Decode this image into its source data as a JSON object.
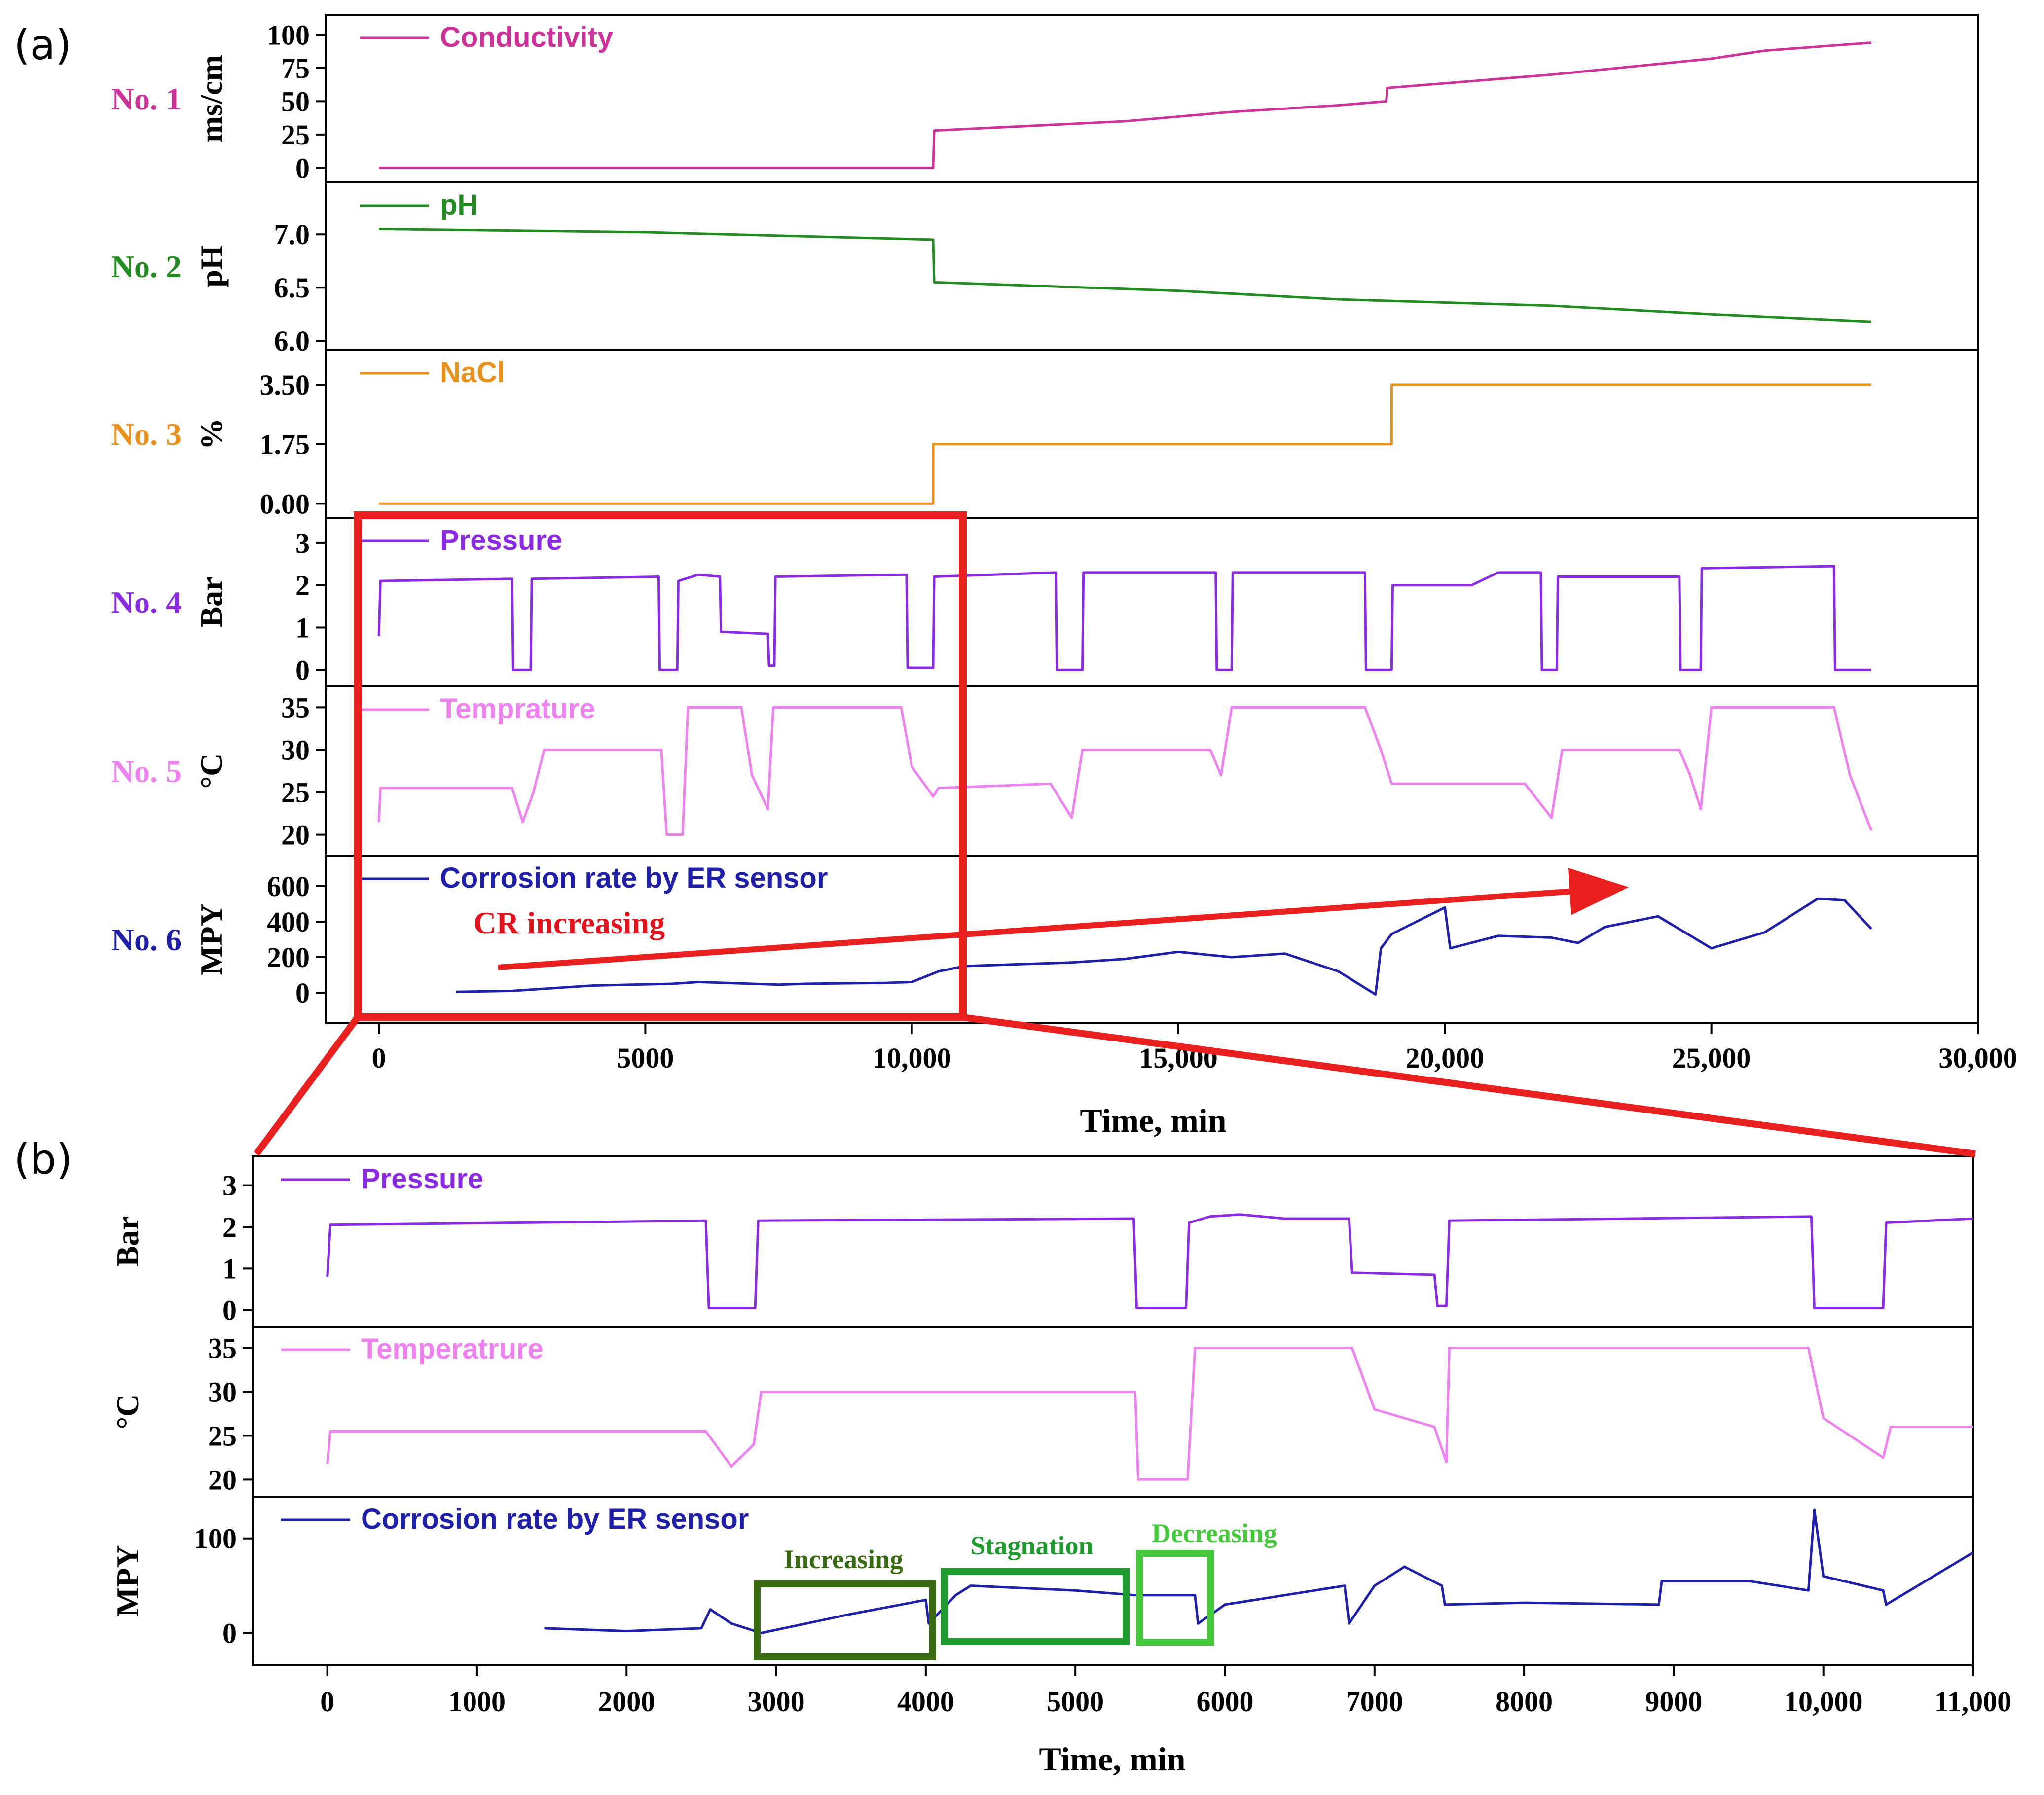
{
  "figure": {
    "panel_a_label": "(a)",
    "panel_b_label": "(b)",
    "xlabel_a": "Time, min",
    "xlabel_b": "Time, min",
    "annotation_cr": "CR increasing",
    "annotation_increasing": "Increasing",
    "annotation_stagnation": "Stagnation",
    "annotation_decreasing": "Decreasing"
  },
  "chart_data": [
    {
      "type": "line",
      "panel": "a",
      "x_ticks": [
        "0",
        "5000",
        "10,000",
        "15,000",
        "20,000",
        "25,000",
        "30,000"
      ],
      "xlim": [
        -1000,
        30000
      ],
      "xlabel": "Time, min",
      "subplots": [
        {
          "row_label": "No. 1",
          "ylabel": "ms/cm",
          "legend": "Conductivity",
          "color": "#cc3399",
          "ylim": [
            -8,
            112
          ],
          "yticks": [
            0,
            25,
            50,
            75,
            100
          ],
          "yticklabels": [
            "0",
            "25",
            "50",
            "75",
            "100"
          ],
          "x": [
            0,
            10400,
            10420,
            14000,
            16000,
            18000,
            18900,
            18920,
            22000,
            25000,
            26000,
            28000
          ],
          "y": [
            0,
            0,
            28,
            35,
            42,
            47,
            50,
            60,
            70,
            82,
            88,
            94
          ]
        },
        {
          "row_label": "No. 2",
          "ylabel": "pH",
          "legend": "pH",
          "color": "#228b22",
          "ylim": [
            5.95,
            7.45
          ],
          "yticks": [
            6.0,
            6.5,
            7.0
          ],
          "yticklabels": [
            "6.0",
            "6.5",
            "7.0"
          ],
          "x": [
            0,
            5000,
            10400,
            10420,
            15000,
            18000,
            22000,
            25000,
            28000
          ],
          "y": [
            7.05,
            7.02,
            6.95,
            6.55,
            6.47,
            6.39,
            6.33,
            6.25,
            6.18
          ]
        },
        {
          "row_label": "No. 3",
          "ylabel": "%",
          "legend": "NaCl",
          "color": "#e8911e",
          "ylim": [
            -0.3,
            4.4
          ],
          "yticks": [
            0,
            1.75,
            3.5
          ],
          "yticklabels": [
            "0.00",
            "1.75",
            "3.50"
          ],
          "x": [
            0,
            10400,
            10401,
            19000,
            19001,
            28000
          ],
          "y": [
            0,
            0,
            1.75,
            1.75,
            3.5,
            3.5
          ]
        },
        {
          "row_label": "No. 4",
          "ylabel": "Bar",
          "legend": "Pressure",
          "color": "#8a2be2",
          "ylim": [
            -0.3,
            3.5
          ],
          "yticks": [
            0,
            1,
            2,
            3
          ],
          "yticklabels": [
            "0",
            "1",
            "2",
            "3"
          ],
          "x": [
            0,
            30,
            2500,
            2520,
            2850,
            2870,
            5250,
            5270,
            5600,
            5620,
            6000,
            6400,
            6420,
            7300,
            7320,
            7420,
            7440,
            9900,
            9920,
            10400,
            10420,
            12700,
            12720,
            13200,
            13220,
            15700,
            15720,
            16000,
            16020,
            18500,
            18520,
            19000,
            19020,
            20500,
            21000,
            21800,
            21820,
            22100,
            22120,
            24400,
            24420,
            24800,
            24820,
            27300,
            27320,
            28000
          ],
          "y": [
            0.8,
            2.1,
            2.15,
            0,
            0,
            2.15,
            2.2,
            0,
            0,
            2.1,
            2.25,
            2.2,
            0.9,
            0.85,
            0.1,
            0.1,
            2.2,
            2.25,
            0.05,
            0.05,
            2.2,
            2.3,
            0,
            0,
            2.3,
            2.3,
            0,
            0,
            2.3,
            2.3,
            0,
            0,
            2.0,
            2.0,
            2.3,
            2.3,
            0,
            0,
            2.2,
            2.2,
            0,
            0,
            2.4,
            2.45,
            0,
            0
          ]
        },
        {
          "row_label": "No. 5",
          "ylabel": "°C",
          "legend": "Temprature",
          "color": "#ee82ee",
          "ylim": [
            18,
            37
          ],
          "yticks": [
            20,
            25,
            30,
            35
          ],
          "yticklabels": [
            "20",
            "25",
            "30",
            "35"
          ],
          "x": [
            0,
            30,
            2500,
            2700,
            2900,
            3100,
            5300,
            5400,
            5700,
            5800,
            6800,
            7000,
            7300,
            7400,
            7600,
            9800,
            10000,
            10400,
            10500,
            12600,
            13000,
            13200,
            13400,
            15600,
            15800,
            16000,
            16100,
            18500,
            18800,
            19000,
            21500,
            22000,
            22200,
            24400,
            24600,
            24800,
            25000,
            25200,
            27300,
            27600,
            28000
          ],
          "y": [
            21.5,
            25.5,
            25.5,
            21.5,
            25,
            30,
            30,
            20,
            20,
            35,
            35,
            27,
            23,
            35,
            35,
            35,
            28,
            24.5,
            25.5,
            26,
            22,
            30,
            30,
            30,
            27,
            35,
            35,
            35,
            30,
            26,
            26,
            22,
            30,
            30,
            27,
            23,
            35,
            35,
            35,
            27,
            20.5
          ]
        },
        {
          "row_label": "No. 6",
          "ylabel": "MPY",
          "legend": "Corrosion rate by ER sensor",
          "color": "#1f1fa8",
          "ylim": [
            -150,
            750
          ],
          "yticks": [
            0,
            200,
            400,
            600
          ],
          "yticklabels": [
            "0",
            "200",
            "400",
            "600"
          ],
          "x": [
            1450,
            2500,
            3000,
            4000,
            5500,
            6000,
            7500,
            8000,
            9500,
            10000,
            10500,
            11000,
            12000,
            13000,
            14000,
            15000,
            16000,
            17000,
            18000,
            18700,
            18800,
            19000,
            20000,
            20100,
            21000,
            22000,
            22500,
            23000,
            24000,
            25000,
            26000,
            27000,
            27500,
            28000
          ],
          "y": [
            5,
            10,
            20,
            40,
            50,
            60,
            45,
            50,
            55,
            60,
            120,
            150,
            160,
            170,
            190,
            230,
            200,
            220,
            120,
            -10,
            250,
            330,
            480,
            250,
            320,
            310,
            280,
            370,
            430,
            250,
            340,
            530,
            520,
            360
          ]
        }
      ]
    },
    {
      "type": "line",
      "panel": "b",
      "x_ticks": [
        "0",
        "1000",
        "2000",
        "3000",
        "4000",
        "5000",
        "6000",
        "7000",
        "8000",
        "9000",
        "10,000",
        "11,000"
      ],
      "xlim": [
        -500,
        11000
      ],
      "xlabel": "Time, min",
      "subplots": [
        {
          "ylabel": "Bar",
          "legend": "Pressure",
          "color": "#8a2be2",
          "ylim": [
            -0.3,
            3.6
          ],
          "yticks": [
            0,
            1,
            2,
            3
          ],
          "yticklabels": [
            "0",
            "1",
            "2",
            "3"
          ],
          "x": [
            0,
            20,
            2530,
            2550,
            2860,
            2880,
            5390,
            5410,
            5740,
            5760,
            5900,
            6100,
            6400,
            6830,
            6850,
            7400,
            7420,
            7480,
            7500,
            9920,
            9940,
            10400,
            10420,
            11000
          ],
          "y": [
            0.8,
            2.05,
            2.15,
            0.05,
            0.05,
            2.15,
            2.2,
            0.05,
            0.05,
            2.1,
            2.25,
            2.3,
            2.2,
            2.2,
            0.9,
            0.85,
            0.1,
            0.1,
            2.15,
            2.25,
            0.05,
            0.05,
            2.1,
            2.2
          ]
        },
        {
          "ylabel": "°C",
          "legend": "Temperatrure",
          "color": "#ee82ee",
          "ylim": [
            18.5,
            37
          ],
          "yticks": [
            20,
            25,
            30,
            35
          ],
          "yticklabels": [
            "20",
            "25",
            "30",
            "35"
          ],
          "x": [
            0,
            20,
            2530,
            2700,
            2850,
            2900,
            5400,
            5420,
            5750,
            5800,
            6850,
            7000,
            7400,
            7480,
            7500,
            9900,
            10000,
            10400,
            10450,
            11000
          ],
          "y": [
            21.8,
            25.5,
            25.5,
            21.5,
            24,
            30,
            30,
            20,
            20,
            35,
            35,
            28,
            26,
            22,
            35,
            35,
            27,
            22.5,
            26,
            26
          ]
        },
        {
          "ylabel": "MPY",
          "legend": "Corrosion rate by ER sensor",
          "color": "#1f1fa8",
          "ylim": [
            -30,
            140
          ],
          "yticks": [
            0,
            100
          ],
          "yticklabels": [
            "0",
            "100"
          ],
          "x": [
            1450,
            2000,
            2500,
            2560,
            2700,
            2900,
            3500,
            4000,
            4020,
            4200,
            4300,
            5000,
            5400,
            5800,
            5820,
            6000,
            6800,
            6830,
            7000,
            7200,
            7450,
            7470,
            8000,
            8900,
            8920,
            9500,
            9900,
            9940,
            10000,
            10400,
            10420,
            11000
          ],
          "y": [
            5,
            2,
            5,
            25,
            10,
            0,
            20,
            35,
            10,
            40,
            50,
            45,
            40,
            40,
            10,
            30,
            50,
            10,
            50,
            70,
            50,
            30,
            32,
            30,
            55,
            55,
            45,
            130,
            60,
            45,
            30,
            85
          ]
        }
      ]
    }
  ]
}
